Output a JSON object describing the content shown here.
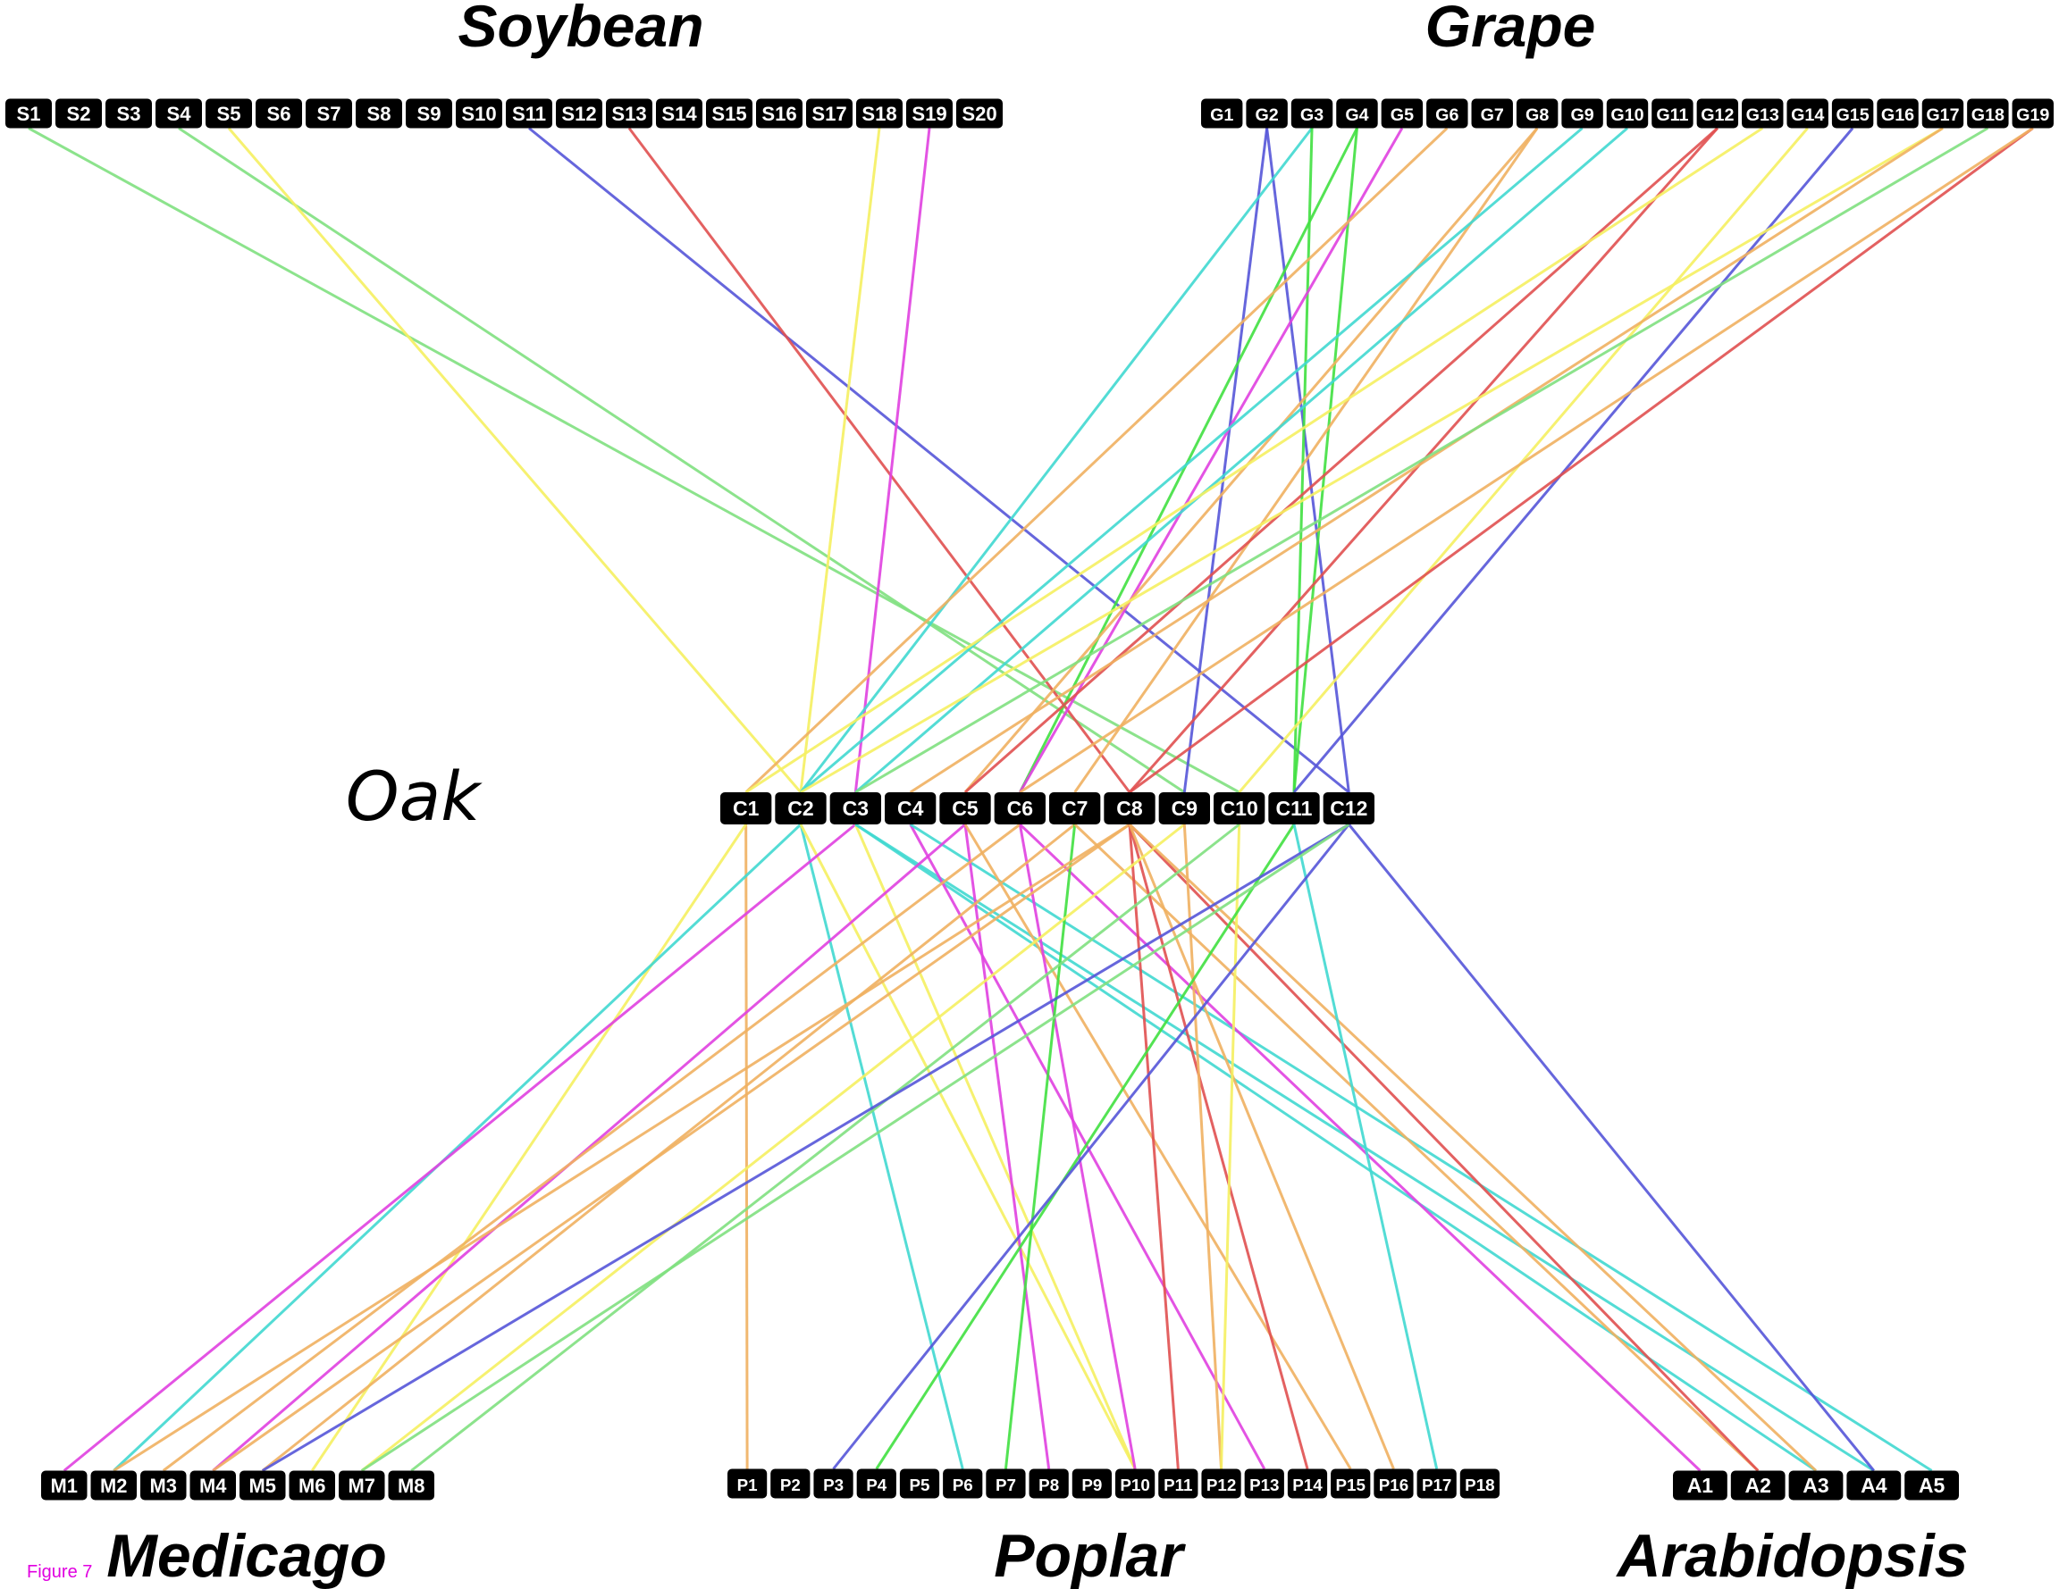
{
  "titles": {
    "soybean": "Soybean",
    "grape": "Grape",
    "oak": "Oak",
    "medicago": "Medicago",
    "poplar": "Poplar",
    "arabidopsis": "Arabidopsis"
  },
  "figure_label": "Figure 7",
  "figure_label_color": "#e000e0",
  "chip_color": "#000000",
  "chip_text_color": "#ffffff",
  "genomes": {
    "soybean": [
      "S1",
      "S2",
      "S3",
      "S4",
      "S5",
      "S6",
      "S7",
      "S8",
      "S9",
      "S10",
      "S11",
      "S12",
      "S13",
      "S14",
      "S15",
      "S16",
      "S17",
      "S18",
      "S19",
      "S20"
    ],
    "grape": [
      "G1",
      "G2",
      "G3",
      "G4",
      "G5",
      "G6",
      "G7",
      "G8",
      "G9",
      "G10",
      "G11",
      "G12",
      "G13",
      "G14",
      "G15",
      "G16",
      "G17",
      "G18",
      "G19"
    ],
    "oak": [
      "C1",
      "C2",
      "C3",
      "C4",
      "C5",
      "C6",
      "C7",
      "C8",
      "C9",
      "C10",
      "C11",
      "C12"
    ],
    "medicago": [
      "M1",
      "M2",
      "M3",
      "M4",
      "M5",
      "M6",
      "M7",
      "M8"
    ],
    "poplar": [
      "P1",
      "P2",
      "P3",
      "P4",
      "P5",
      "P6",
      "P7",
      "P8",
      "P9",
      "P10",
      "P11",
      "P12",
      "P13",
      "P14",
      "P15",
      "P16",
      "P17",
      "P18"
    ],
    "arabidopsis": [
      "A1",
      "A2",
      "A3",
      "A4",
      "A5"
    ]
  },
  "line_colors": {
    "green": "#7fe07f",
    "yellow": "#f5f060",
    "blue": "#5555d8",
    "red": "#e05050",
    "magenta": "#e040e0",
    "cyan": "#40d8d0",
    "orange": "#f0b060",
    "lime": "#40e040"
  },
  "links": [
    {
      "from": "S1",
      "to": "C10",
      "color": "green"
    },
    {
      "from": "S4",
      "to": "C9",
      "color": "green"
    },
    {
      "from": "S5",
      "to": "C2",
      "color": "yellow"
    },
    {
      "from": "S11",
      "to": "C12",
      "color": "blue"
    },
    {
      "from": "S13",
      "to": "C8",
      "color": "red"
    },
    {
      "from": "S18",
      "to": "C2",
      "color": "yellow"
    },
    {
      "from": "S19",
      "to": "C3",
      "color": "magenta"
    },
    {
      "from": "G2",
      "to": "C9",
      "color": "blue"
    },
    {
      "from": "G2",
      "to": "C12",
      "color": "blue"
    },
    {
      "from": "G3",
      "to": "C2",
      "color": "cyan"
    },
    {
      "from": "G3",
      "to": "C11",
      "color": "lime"
    },
    {
      "from": "G4",
      "to": "C6",
      "color": "lime"
    },
    {
      "from": "G4",
      "to": "C11",
      "color": "lime"
    },
    {
      "from": "G5",
      "to": "C6",
      "color": "magenta"
    },
    {
      "from": "G6",
      "to": "C1",
      "color": "orange"
    },
    {
      "from": "G8",
      "to": "C5",
      "color": "orange"
    },
    {
      "from": "G8",
      "to": "C7",
      "color": "orange"
    },
    {
      "from": "G9",
      "to": "C2",
      "color": "cyan"
    },
    {
      "from": "G10",
      "to": "C3",
      "color": "cyan"
    },
    {
      "from": "G12",
      "to": "C8",
      "color": "red"
    },
    {
      "from": "G12",
      "to": "C5",
      "color": "red"
    },
    {
      "from": "G13",
      "to": "C1",
      "color": "yellow"
    },
    {
      "from": "G14",
      "to": "C10",
      "color": "yellow"
    },
    {
      "from": "G15",
      "to": "C11",
      "color": "blue"
    },
    {
      "from": "G17",
      "to": "C2",
      "color": "yellow"
    },
    {
      "from": "G17",
      "to": "C4",
      "color": "orange"
    },
    {
      "from": "G18",
      "to": "C3",
      "color": "green"
    },
    {
      "from": "G19",
      "to": "C8",
      "color": "red"
    },
    {
      "from": "G19",
      "to": "C6",
      "color": "orange"
    },
    {
      "from": "C1",
      "to": "P1",
      "color": "orange"
    },
    {
      "from": "C1",
      "to": "M6",
      "color": "yellow"
    },
    {
      "from": "C2",
      "to": "M2",
      "color": "cyan"
    },
    {
      "from": "C2",
      "to": "P6",
      "color": "cyan"
    },
    {
      "from": "C2",
      "to": "P10",
      "color": "yellow"
    },
    {
      "from": "C3",
      "to": "M1",
      "color": "magenta"
    },
    {
      "from": "C3",
      "to": "P10",
      "color": "yellow"
    },
    {
      "from": "C3",
      "to": "A4",
      "color": "cyan"
    },
    {
      "from": "C3",
      "to": "A3",
      "color": "cyan"
    },
    {
      "from": "C4",
      "to": "P13",
      "color": "magenta"
    },
    {
      "from": "C4",
      "to": "A5",
      "color": "cyan"
    },
    {
      "from": "C5",
      "to": "M4",
      "color": "magenta"
    },
    {
      "from": "C5",
      "to": "P8",
      "color": "magenta"
    },
    {
      "from": "C5",
      "to": "P15",
      "color": "orange"
    },
    {
      "from": "C6",
      "to": "P10",
      "color": "magenta"
    },
    {
      "from": "C6",
      "to": "M3",
      "color": "orange"
    },
    {
      "from": "C6",
      "to": "A1",
      "color": "magenta"
    },
    {
      "from": "C7",
      "to": "M5",
      "color": "orange"
    },
    {
      "from": "C7",
      "to": "P7",
      "color": "lime"
    },
    {
      "from": "C7",
      "to": "A2",
      "color": "orange"
    },
    {
      "from": "C8",
      "to": "M4",
      "color": "orange"
    },
    {
      "from": "C8",
      "to": "M2",
      "color": "orange"
    },
    {
      "from": "C8",
      "to": "P11",
      "color": "red"
    },
    {
      "from": "C8",
      "to": "P14",
      "color": "red"
    },
    {
      "from": "C8",
      "to": "A2",
      "color": "red"
    },
    {
      "from": "C8",
      "to": "P16",
      "color": "orange"
    },
    {
      "from": "C8",
      "to": "A3",
      "color": "orange"
    },
    {
      "from": "C9",
      "to": "M7",
      "color": "yellow"
    },
    {
      "from": "C9",
      "to": "P12",
      "color": "orange"
    },
    {
      "from": "C10",
      "to": "P12",
      "color": "yellow"
    },
    {
      "from": "C10",
      "to": "M8",
      "color": "green"
    },
    {
      "from": "C11",
      "to": "P4",
      "color": "lime"
    },
    {
      "from": "C11",
      "to": "P17",
      "color": "cyan"
    },
    {
      "from": "C12",
      "to": "M5",
      "color": "blue"
    },
    {
      "from": "C12",
      "to": "P3",
      "color": "blue"
    },
    {
      "from": "C12",
      "to": "A4",
      "color": "blue"
    },
    {
      "from": "C12",
      "to": "M7",
      "color": "green"
    }
  ]
}
